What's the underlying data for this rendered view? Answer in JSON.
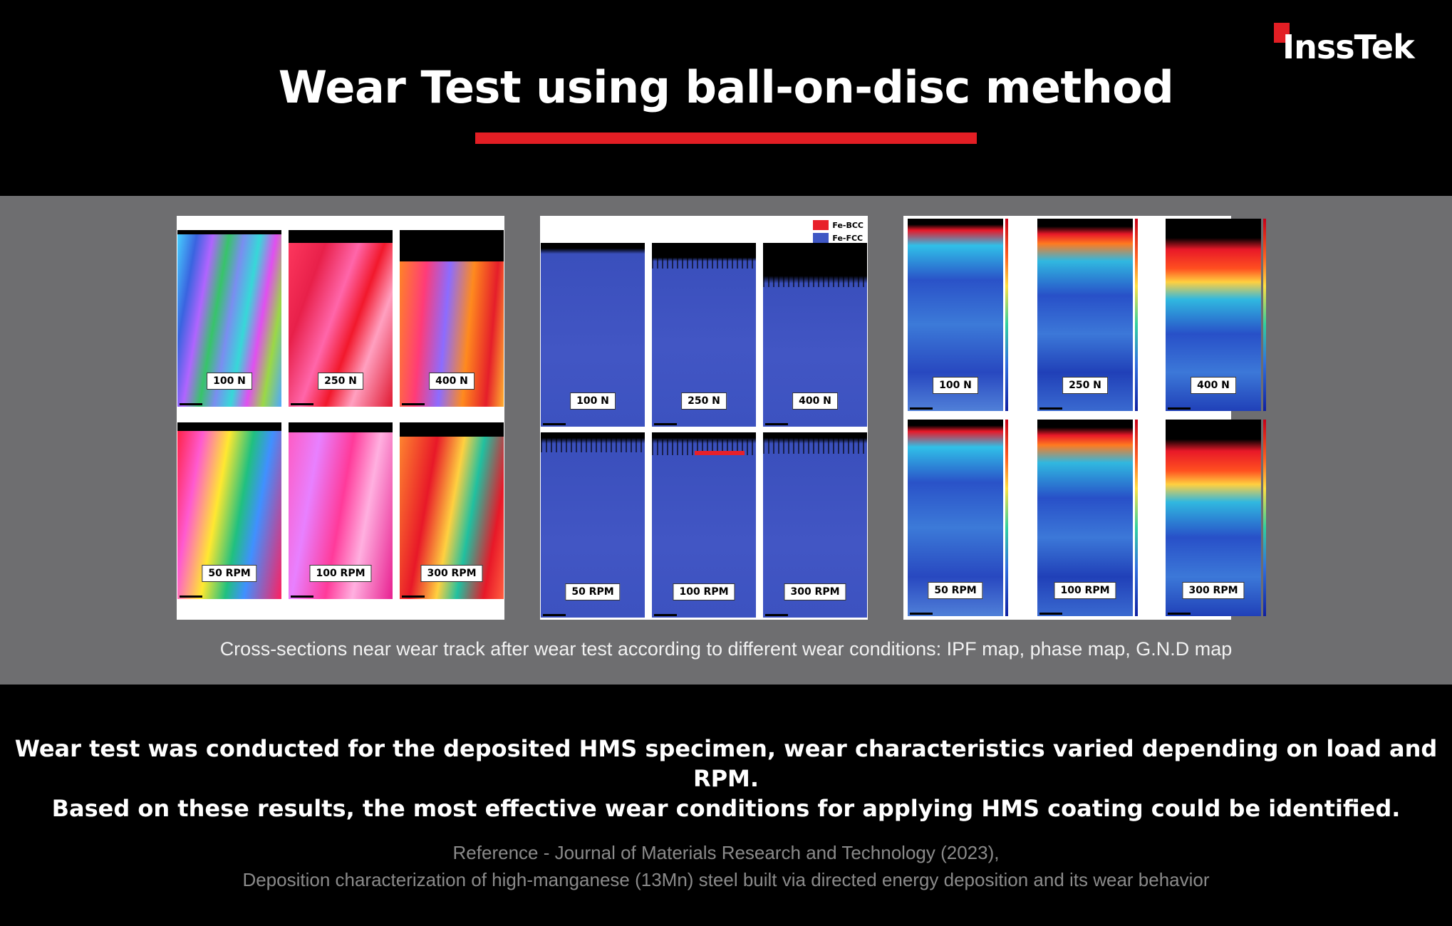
{
  "logo": {
    "text": "InssTek"
  },
  "title": "Wear Test using ball-on-disc method",
  "panels": {
    "ipf": {
      "labels": [
        "100 N",
        "250 N",
        "400 N",
        "50 RPM",
        "100 RPM",
        "300 RPM"
      ]
    },
    "phase": {
      "labels": [
        "100 N",
        "250 N",
        "400 N",
        "50 RPM",
        "100 RPM",
        "300 RPM"
      ],
      "legend": [
        {
          "name": "Fe-BCC",
          "color": "#e8202a"
        },
        {
          "name": "Fe-FCC",
          "color": "#3f57c4"
        }
      ]
    },
    "gnd": {
      "labels": [
        "100 N",
        "250 N",
        "400 N",
        "50 RPM",
        "100 RPM",
        "300 RPM"
      ]
    }
  },
  "caption": "Cross-sections near wear track after wear test according to different wear conditions: IPF map, phase map, G.N.D map",
  "summary": {
    "line1": "Wear test was conducted for the deposited HMS specimen, wear characteristics varied depending on load and RPM.",
    "line2": "Based on these results, the most effective wear conditions for applying HMS coating could be identified."
  },
  "reference": {
    "line1": "Reference - Journal of Materials Research and Technology (2023),",
    "line2": "Deposition characterization of high-manganese (13Mn) steel built via directed energy deposition and its wear behavior"
  },
  "colors": {
    "accent": "#e31e24",
    "band": "#6e6e70",
    "background": "#000000"
  }
}
